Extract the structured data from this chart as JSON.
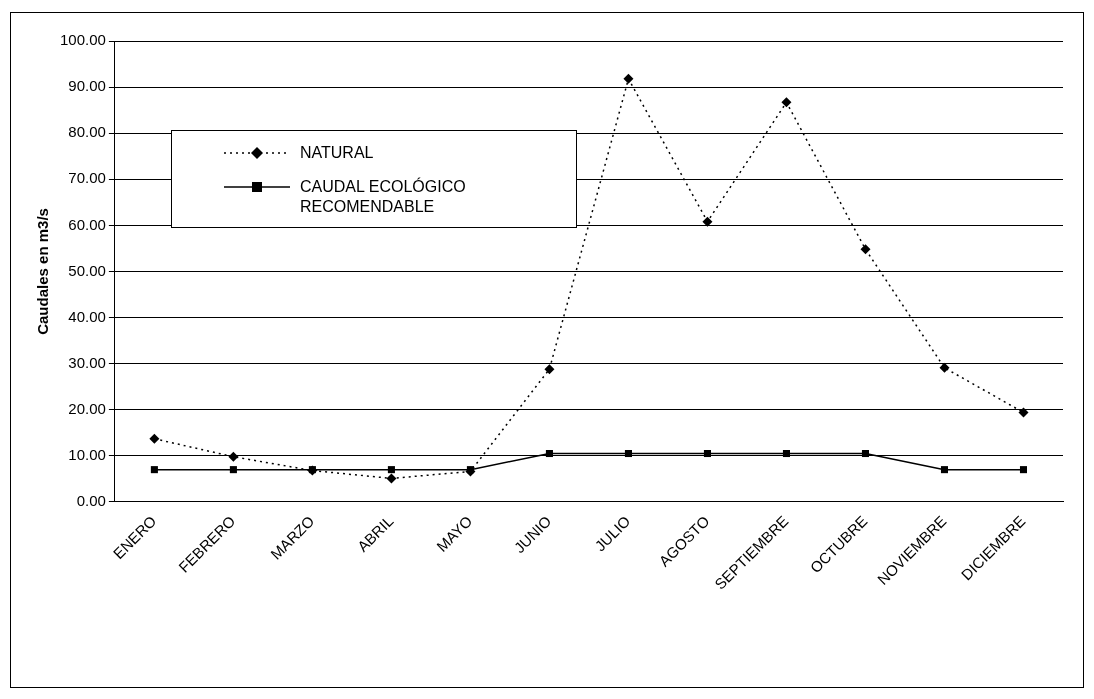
{
  "chart_data": {
    "type": "line",
    "ylabel": "Caudales en m3/s",
    "categories": [
      "ENERO",
      "FEBRERO",
      "MARZO",
      "ABRIL",
      "MAYO",
      "JUNIO",
      "JULIO",
      "AGOSTO",
      "SEPTIEMBRE",
      "OCTUBRE",
      "NOVIEMBRE",
      "DICIEMBRE"
    ],
    "series": [
      {
        "name": "NATURAL",
        "color": "#000000",
        "marker": "diamond",
        "line_style": "dotted",
        "values": [
          13.7,
          9.8,
          6.8,
          5.1,
          6.6,
          28.8,
          91.8,
          60.8,
          86.7,
          54.8,
          29.1,
          19.4
        ]
      },
      {
        "name": "CAUDAL ECOLÓGICO RECOMENDABLE",
        "color": "#000000",
        "marker": "square",
        "line_style": "solid",
        "values": [
          7.0,
          7.0,
          7.0,
          7.0,
          7.0,
          10.5,
          10.5,
          10.5,
          10.5,
          10.5,
          7.0,
          7.0
        ]
      }
    ],
    "ylim": [
      0,
      100
    ],
    "yticks": [
      {
        "value": 0,
        "label": "0.00"
      },
      {
        "value": 10,
        "label": "10.00"
      },
      {
        "value": 20,
        "label": "20.00"
      },
      {
        "value": 30,
        "label": "30.00"
      },
      {
        "value": 40,
        "label": "40.00"
      },
      {
        "value": 50,
        "label": "50.00"
      },
      {
        "value": 60,
        "label": "60.00"
      },
      {
        "value": 70,
        "label": "70.00"
      },
      {
        "value": 80,
        "label": "80.00"
      },
      {
        "value": 90,
        "label": "90.00"
      },
      {
        "value": 100,
        "label": "100.00"
      }
    ],
    "grid": "y",
    "legend": "top left"
  }
}
